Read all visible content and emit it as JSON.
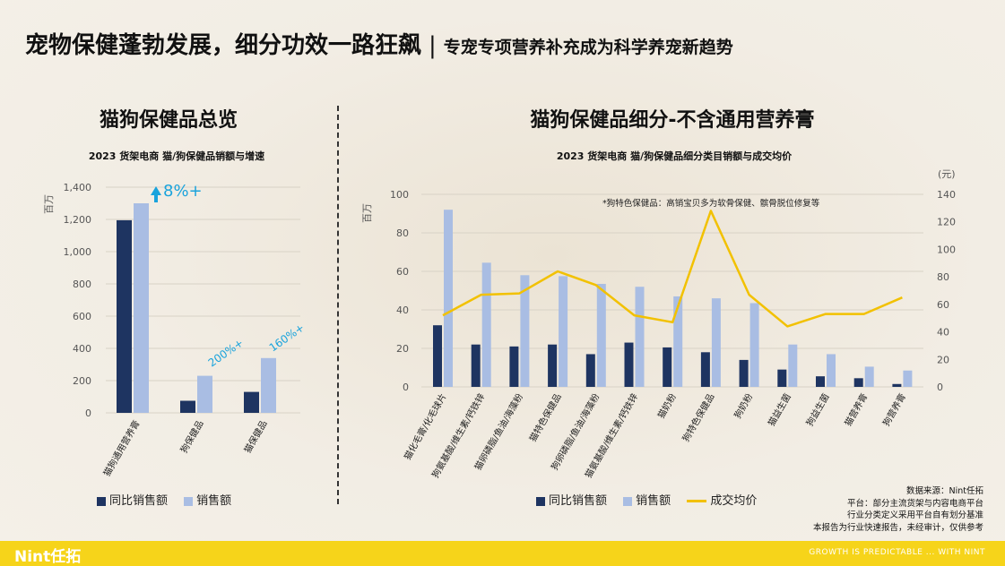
{
  "title": {
    "main": "宠物保健蓬勃发展，细分功效一路狂飙",
    "separator": "|",
    "sub": "专宠专项营养补充成为科学养宠新趋势"
  },
  "left": {
    "heading": "猫狗保健品总览",
    "subtitle": "2023 货架电商 猫/狗保健品销额与增速",
    "unit": "百万",
    "legend": [
      "同比销售额",
      "销售额"
    ]
  },
  "right": {
    "heading": "猫狗保健品细分-不含通用营养膏",
    "subtitle": "2023 货架电商 猫/狗保健品细分类目销额与成交均价",
    "unit_left": "百万",
    "unit_right": "(元)",
    "note": "*狗特色保健品：高销宝贝多为软骨保健、髌骨脱位修复等",
    "legend": [
      "同比销售额",
      "销售额",
      "成交均价"
    ]
  },
  "source": {
    "line1": "数据来源：Nint任拓",
    "line2": "平台：部分主流货架与内容电商平台",
    "line3": "行业分类定义采用平台自有划分基准",
    "line4": "本报告为行业快速报告，未经审计，仅供参考"
  },
  "footer": {
    "brand": "Nint任拓",
    "tagline": "GROWTH IS PREDICTABLE ... WITH NINT"
  },
  "colors": {
    "dark": "#1e3461",
    "light": "#a9bde3",
    "line": "#f2c100",
    "accent": "#1aa3dc"
  },
  "chart_data": [
    {
      "type": "bar",
      "title": "2023 货架电商 猫/狗保健品销额与增速",
      "ylabel": "百万",
      "ylim": [
        0,
        1400
      ],
      "yticks": [
        "0",
        "200",
        "400",
        "600",
        "800",
        "1,000",
        "1,200",
        "1,400"
      ],
      "categories": [
        "猫狗通用营养膏",
        "狗保健品",
        "猫保健品"
      ],
      "series": [
        {
          "name": "同比销售额",
          "values": [
            1195,
            75,
            130
          ]
        },
        {
          "name": "销售额",
          "values": [
            1300,
            230,
            340
          ]
        }
      ],
      "annotations": [
        "8%+",
        "200%+",
        "160%+"
      ]
    },
    {
      "type": "bar",
      "title": "2023 货架电商 猫/狗保健品细分类目销额与成交均价",
      "ylabel": "百万",
      "ylim": [
        0,
        100
      ],
      "yticks": [
        "0",
        "20",
        "40",
        "60",
        "80",
        "100"
      ],
      "y2label": "(元)",
      "y2lim": [
        0,
        140
      ],
      "y2ticks": [
        "0",
        "20",
        "40",
        "60",
        "80",
        "100",
        "120",
        "140"
      ],
      "categories": [
        "猫化毛膏/化毛球片",
        "狗氨基酸/维生素/钙铁锌",
        "猫卵磷脂/鱼油/海藻粉",
        "猫特色保健品",
        "狗卵磷脂/鱼油/海藻粉",
        "猫氨基酸/维生素/钙铁锌",
        "猫奶粉",
        "狗特色保健品",
        "狗奶粉",
        "猫益生菌",
        "狗益生菌",
        "猫营养膏",
        "狗营养膏"
      ],
      "series": [
        {
          "name": "同比销售额",
          "values": [
            32,
            22,
            21,
            22,
            17,
            23,
            20.5,
            18,
            14,
            9,
            5.5,
            4.5,
            1.5
          ]
        },
        {
          "name": "销售额",
          "values": [
            92,
            64.5,
            58,
            57.5,
            53.5,
            52,
            47,
            46,
            43.5,
            22,
            17,
            10.5,
            8.5
          ]
        },
        {
          "name": "成交均价",
          "axis": "right",
          "values": [
            52,
            67,
            68,
            84,
            74,
            52,
            47,
            128,
            67,
            44,
            53,
            53,
            65
          ]
        }
      ],
      "legend": "bottom"
    }
  ]
}
